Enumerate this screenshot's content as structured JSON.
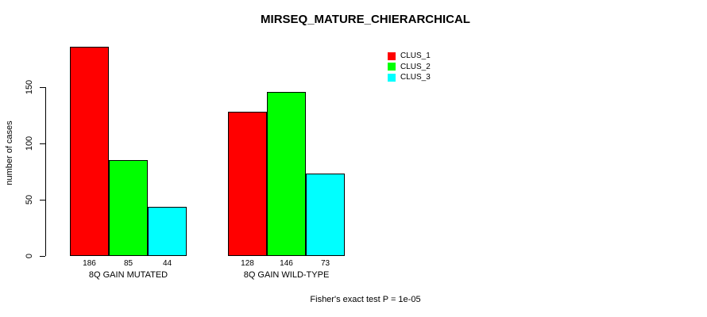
{
  "chart_data": {
    "type": "bar",
    "title": "MIRSEQ_MATURE_CHIERARCHICAL",
    "ylabel": "number of cases",
    "xlabel": "",
    "yticks": [
      0,
      50,
      100,
      150
    ],
    "ylim": [
      0,
      186
    ],
    "grid": false,
    "background": "#ffffff",
    "axis_color": "#000000",
    "categories": [
      "8Q GAIN MUTATED",
      "8Q GAIN WILD-TYPE"
    ],
    "series": [
      {
        "name": "CLUS_1",
        "color": "#ff0000",
        "values": [
          186,
          128
        ]
      },
      {
        "name": "CLUS_2",
        "color": "#00ff00",
        "values": [
          85,
          146
        ]
      },
      {
        "name": "CLUS_3",
        "color": "#00ffff",
        "values": [
          44,
          73
        ]
      }
    ],
    "bar_value_labels": [
      [
        186,
        85,
        44
      ],
      [
        128,
        146,
        73
      ]
    ],
    "legend": {
      "position": "top-right",
      "entries": [
        "CLUS_1",
        "CLUS_2",
        "CLUS_3"
      ]
    },
    "annotation": "Fisher's exact test P = 1e-05"
  }
}
